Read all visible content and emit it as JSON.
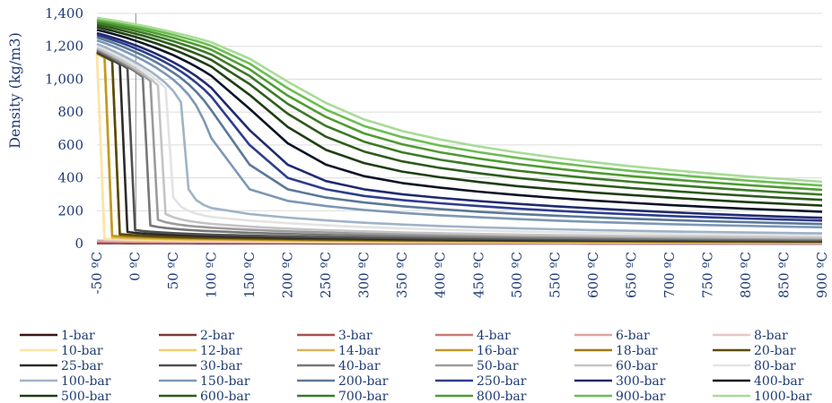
{
  "chart_data": {
    "type": "line",
    "ylabel": "Density (kg/m3)",
    "ylim": [
      0,
      1400
    ],
    "xlim": [
      -50,
      900
    ],
    "y_ticks": [
      "0",
      "200",
      "400",
      "600",
      "800",
      "1,000",
      "1,200",
      "1,400"
    ],
    "x_ticks": [
      "-50 ºC",
      "0 ºC",
      "50 ºC",
      "100 ºC",
      "150 ºC",
      "200 ºC",
      "250 ºC",
      "300 ºC",
      "350 ºC",
      "400 ºC",
      "450 ºC",
      "500 ºC",
      "550 ºC",
      "600 ºC",
      "650 ºC",
      "700 ºC",
      "750 ºC",
      "800 ºC",
      "850 ºC",
      "900 ºC"
    ],
    "grid": true,
    "legend_position": "bottom",
    "x": [
      -50,
      -40,
      -30,
      -20,
      -10,
      0,
      10,
      20,
      30,
      40,
      50,
      60,
      70,
      80,
      90,
      100,
      150,
      200,
      250,
      300,
      350,
      400,
      450,
      500,
      550,
      600,
      650,
      700,
      750,
      800,
      850,
      900
    ],
    "series": [
      {
        "name": "1-bar",
        "color": "#3b1414",
        "values": [
          2.8,
          2.7,
          2.6,
          2.5,
          2.4,
          2.35,
          2.3,
          2.2,
          2.15,
          2.1,
          2.05,
          2.0,
          1.95,
          1.9,
          1.85,
          1.8,
          1.6,
          1.45,
          1.3,
          1.2,
          1.1,
          1.05,
          0.95,
          0.9,
          0.85,
          0.8,
          0.8,
          0.75,
          0.7,
          0.7,
          0.65,
          0.6
        ]
      },
      {
        "name": "2-bar",
        "color": "#7b3a3a",
        "values": [
          5.7,
          5.5,
          5.3,
          5.0,
          4.9,
          4.7,
          4.6,
          4.4,
          4.3,
          4.2,
          4.1,
          4.0,
          3.9,
          3.8,
          3.7,
          3.6,
          3.2,
          2.9,
          2.6,
          2.4,
          2.2,
          2.1,
          1.9,
          1.8,
          1.7,
          1.6,
          1.6,
          1.5,
          1.4,
          1.4,
          1.3,
          1.2
        ]
      },
      {
        "name": "3-bar",
        "color": "#a55050",
        "values": [
          8.7,
          8.3,
          8.0,
          7.6,
          7.4,
          7.1,
          6.9,
          6.6,
          6.4,
          6.3,
          6.1,
          6.0,
          5.8,
          5.7,
          5.5,
          5.4,
          4.8,
          4.3,
          3.9,
          3.6,
          3.3,
          3.1,
          2.9,
          2.7,
          2.6,
          2.4,
          2.3,
          2.2,
          2.1,
          2.0,
          1.9,
          1.8
        ]
      },
      {
        "name": "4-bar",
        "color": "#c87878",
        "values": [
          11.8,
          11.2,
          10.7,
          10.2,
          9.9,
          9.5,
          9.2,
          8.9,
          8.6,
          8.4,
          8.2,
          7.9,
          7.7,
          7.6,
          7.4,
          7.2,
          6.4,
          5.8,
          5.2,
          4.8,
          4.4,
          4.1,
          3.9,
          3.6,
          3.4,
          3.3,
          3.1,
          2.9,
          2.8,
          2.7,
          2.6,
          2.5
        ]
      },
      {
        "name": "6-bar",
        "color": "#dba5a5",
        "values": [
          18.0,
          17.1,
          16.3,
          15.5,
          14.9,
          14.3,
          13.8,
          13.3,
          12.9,
          12.5,
          12.2,
          11.9,
          11.6,
          11.3,
          11.0,
          10.8,
          9.6,
          8.6,
          7.8,
          7.2,
          6.6,
          6.2,
          5.8,
          5.4,
          5.1,
          4.9,
          4.6,
          4.4,
          4.2,
          4.0,
          3.9,
          3.7
        ]
      },
      {
        "name": "8-bar",
        "color": "#e8c4c4",
        "values": [
          1150,
          23.0,
          21.9,
          20.8,
          20.0,
          19.2,
          18.5,
          17.8,
          17.2,
          16.7,
          16.2,
          15.8,
          15.4,
          15.0,
          14.7,
          14.4,
          12.8,
          11.5,
          10.4,
          9.6,
          8.8,
          8.2,
          7.7,
          7.2,
          6.8,
          6.5,
          6.2,
          5.9,
          5.6,
          5.4,
          5.2,
          5.0
        ]
      },
      {
        "name": "10-bar",
        "color": "#fbe6a2",
        "values": [
          1152,
          29.4,
          27.8,
          26.4,
          25.2,
          24.1,
          23.2,
          22.3,
          21.6,
          20.9,
          20.3,
          19.7,
          19.2,
          18.7,
          18.3,
          17.9,
          16.0,
          14.4,
          13.0,
          11.9,
          11.0,
          10.3,
          9.6,
          9.0,
          8.5,
          8.1,
          7.7,
          7.3,
          7.0,
          6.7,
          6.5,
          6.2
        ]
      },
      {
        "name": "12-bar",
        "color": "#f2cf6e",
        "values": [
          1154,
          1130,
          34.0,
          32.0,
          30.5,
          29.1,
          27.9,
          26.8,
          25.9,
          25.1,
          24.3,
          23.6,
          23.0,
          22.4,
          21.9,
          21.4,
          19.2,
          17.3,
          15.6,
          14.3,
          13.2,
          12.3,
          11.5,
          10.8,
          10.2,
          9.7,
          9.2,
          8.8,
          8.4,
          8.1,
          7.7,
          7.4
        ]
      },
      {
        "name": "14-bar",
        "color": "#dbb25a",
        "values": [
          1156,
          1132,
          40.6,
          38.0,
          36.0,
          34.3,
          32.8,
          31.5,
          30.4,
          29.4,
          28.5,
          27.6,
          26.9,
          26.2,
          25.6,
          25.0,
          22.4,
          20.1,
          18.2,
          16.7,
          15.4,
          14.4,
          13.4,
          12.6,
          11.9,
          11.3,
          10.7,
          10.2,
          9.8,
          9.4,
          9.0,
          8.7
        ]
      },
      {
        "name": "16-bar",
        "color": "#c19a25",
        "values": [
          1158,
          1134,
          47.5,
          44.2,
          41.7,
          39.6,
          37.8,
          36.3,
          35.0,
          33.8,
          32.7,
          31.7,
          30.8,
          30.0,
          29.3,
          28.6,
          25.6,
          23.0,
          20.8,
          19.1,
          17.6,
          16.4,
          15.3,
          14.4,
          13.6,
          12.9,
          12.3,
          11.7,
          11.2,
          10.7,
          10.3,
          9.9
        ]
      },
      {
        "name": "18-bar",
        "color": "#9c7a12",
        "values": [
          1160,
          1136,
          1110,
          50.7,
          47.6,
          45.0,
          42.9,
          41.1,
          39.6,
          38.2,
          36.9,
          35.8,
          34.8,
          33.9,
          33.0,
          32.2,
          28.8,
          25.9,
          23.4,
          21.5,
          19.8,
          18.5,
          17.3,
          16.2,
          15.3,
          14.5,
          13.8,
          13.1,
          12.6,
          12.0,
          11.6,
          11.1
        ]
      },
      {
        "name": "20-bar",
        "color": "#5c4a08",
        "values": [
          1162,
          1138,
          1112,
          57.6,
          53.7,
          50.6,
          48.1,
          46.0,
          44.2,
          42.6,
          41.2,
          39.9,
          38.7,
          37.7,
          36.7,
          35.8,
          32.0,
          28.8,
          26.0,
          23.9,
          22.0,
          20.5,
          19.2,
          18.0,
          17.0,
          16.1,
          15.3,
          14.6,
          14.0,
          13.4,
          12.8,
          12.3
        ]
      },
      {
        "name": "25-bar",
        "color": "#2b2b2b",
        "values": [
          1166,
          1142,
          1117,
          1090,
          70.6,
          65.6,
          61.8,
          58.8,
          56.3,
          54.1,
          52.2,
          50.5,
          49.0,
          47.6,
          46.3,
          45.1,
          40.1,
          36.0,
          32.6,
          29.8,
          27.5,
          25.6,
          24.0,
          22.5,
          21.2,
          20.1,
          19.1,
          18.2,
          17.4,
          16.7,
          16.0,
          15.4
        ]
      },
      {
        "name": "30-bar",
        "color": "#505050",
        "values": [
          1170,
          1146,
          1121,
          1095,
          1066,
          82.8,
          77.0,
          72.6,
          69.1,
          66.2,
          63.6,
          61.4,
          59.4,
          57.6,
          56.0,
          54.5,
          48.3,
          43.3,
          39.2,
          35.8,
          33.0,
          30.7,
          28.7,
          27.0,
          25.5,
          24.1,
          22.9,
          21.8,
          20.9,
          20.0,
          19.2,
          18.5
        ]
      },
      {
        "name": "40-bar",
        "color": "#777777",
        "values": [
          1178,
          1154,
          1130,
          1104,
          1076,
          1047,
          1014,
          110,
          101,
          95.0,
          90.2,
          86.2,
          82.8,
          79.9,
          77.3,
          75.0,
          65.8,
          58.8,
          53.1,
          48.4,
          44.5,
          41.3,
          38.6,
          36.2,
          34.1,
          32.3,
          30.7,
          29.2,
          27.9,
          26.8,
          25.7,
          24.7
        ]
      },
      {
        "name": "50-bar",
        "color": "#9b9b9b",
        "values": [
          1185,
          1162,
          1138,
          1113,
          1086,
          1057,
          1026,
          990,
          145,
          130,
          121,
          114,
          108,
          104,
          100,
          96.6,
          84.0,
          74.7,
          67.3,
          61.2,
          56.2,
          52.1,
          48.6,
          45.6,
          42.9,
          40.6,
          38.6,
          36.7,
          35.1,
          33.6,
          32.2,
          31.0
        ]
      },
      {
        "name": "60-bar",
        "color": "#c4c4c4",
        "values": [
          1192,
          1170,
          1146,
          1121,
          1095,
          1067,
          1037,
          1003,
          962,
          180,
          160,
          147,
          138,
          131,
          125,
          120,
          103,
          91.2,
          81.9,
          74.4,
          68.2,
          63.1,
          58.8,
          55.1,
          51.9,
          49.0,
          46.5,
          44.3,
          42.3,
          40.5,
          38.8,
          37.3
        ]
      },
      {
        "name": "80-bar",
        "color": "#e3e3e3",
        "values": [
          1204,
          1184,
          1161,
          1138,
          1113,
          1086,
          1058,
          1026,
          990,
          946,
          280,
          225,
          199,
          183,
          171,
          162,
          140,
          124,
          111,
          100,
          91.8,
          84.8,
          78.9,
          73.9,
          69.5,
          65.6,
          62.2,
          59.2,
          56.5,
          54.0,
          51.8,
          49.7
        ]
      },
      {
        "name": "100-bar",
        "color": "#9fb3c8",
        "values": [
          1214,
          1196,
          1175,
          1153,
          1129,
          1104,
          1077,
          1048,
          1015,
          976,
          928,
          860,
          330,
          265,
          235,
          216,
          180,
          158,
          141,
          127,
          116,
          107,
          99.4,
          93.0,
          87.3,
          82.4,
          78.1,
          74.2,
          70.8,
          67.6,
          64.8,
          62.2
        ]
      },
      {
        "name": "150-bar",
        "color": "#7d97b5",
        "values": [
          1236,
          1220,
          1202,
          1183,
          1162,
          1140,
          1117,
          1091,
          1063,
          1032,
          997,
          955,
          905,
          840,
          750,
          640,
          330,
          260,
          228,
          205,
          187,
          172,
          160,
          149,
          140,
          132,
          125,
          118,
          113,
          108,
          103,
          99
        ]
      },
      {
        "name": "200-bar",
        "color": "#5b7897",
        "values": [
          1254,
          1239,
          1223,
          1205,
          1186,
          1166,
          1145,
          1122,
          1097,
          1070,
          1040,
          1007,
          969,
          924,
          872,
          810,
          480,
          330,
          280,
          250,
          227,
          209,
          194,
          181,
          170,
          160,
          151,
          143,
          136,
          130,
          124,
          119
        ]
      },
      {
        "name": "250-bar",
        "color": "#2e3d8f",
        "values": [
          1268,
          1255,
          1240,
          1224,
          1207,
          1188,
          1169,
          1148,
          1126,
          1102,
          1076,
          1047,
          1015,
          979,
          939,
          893,
          600,
          400,
          330,
          290,
          265,
          245,
          228,
          213,
          200,
          188,
          178,
          168,
          160,
          153,
          146,
          140
        ]
      },
      {
        "name": "300-bar",
        "color": "#1f2a6e",
        "values": [
          1280,
          1268,
          1254,
          1240,
          1224,
          1207,
          1189,
          1170,
          1149,
          1127,
          1103,
          1077,
          1049,
          1018,
          984,
          946,
          690,
          480,
          380,
          330,
          300,
          278,
          259,
          242,
          227,
          214,
          202,
          191,
          181,
          172,
          164,
          157
        ]
      },
      {
        "name": "400-bar",
        "color": "#0b1226",
        "values": [
          1300,
          1289,
          1277,
          1264,
          1250,
          1235,
          1219,
          1202,
          1185,
          1166,
          1146,
          1124,
          1101,
          1076,
          1049,
          1020,
          820,
          610,
          480,
          410,
          368,
          340,
          316,
          296,
          278,
          262,
          248,
          235,
          223,
          212,
          203,
          194
        ]
      },
      {
        "name": "500-bar",
        "color": "#1f3d12",
        "values": [
          1316,
          1306,
          1295,
          1283,
          1271,
          1258,
          1244,
          1229,
          1214,
          1197,
          1180,
          1162,
          1142,
          1121,
          1099,
          1076,
          905,
          710,
          570,
          490,
          438,
          403,
          375,
          350,
          330,
          311,
          295,
          280,
          266,
          253,
          242,
          231
        ]
      },
      {
        "name": "600-bar",
        "color": "#2e5a1c",
        "values": [
          1330,
          1321,
          1311,
          1300,
          1289,
          1277,
          1265,
          1252,
          1238,
          1223,
          1208,
          1191,
          1174,
          1156,
          1137,
          1117,
          970,
          790,
          650,
          560,
          500,
          460,
          428,
          400,
          377,
          356,
          338,
          321,
          305,
          291,
          278,
          266
        ]
      },
      {
        "name": "700-bar",
        "color": "#3c7a26",
        "values": [
          1343,
          1335,
          1325,
          1315,
          1305,
          1294,
          1283,
          1271,
          1258,
          1245,
          1231,
          1216,
          1201,
          1185,
          1168,
          1150,
          1020,
          850,
          715,
          620,
          555,
          510,
          475,
          444,
          419,
          396,
          376,
          358,
          341,
          325,
          311,
          298
        ]
      },
      {
        "name": "800-bar",
        "color": "#4f9b33",
        "values": [
          1354,
          1346,
          1338,
          1329,
          1319,
          1309,
          1299,
          1288,
          1276,
          1264,
          1252,
          1238,
          1224,
          1210,
          1195,
          1179,
          1060,
          900,
          770,
          670,
          604,
          555,
          517,
          485,
          457,
          432,
          410,
          391,
          373,
          356,
          341,
          327
        ]
      },
      {
        "name": "900-bar",
        "color": "#6bbd52",
        "values": [
          1364,
          1357,
          1349,
          1341,
          1332,
          1323,
          1313,
          1303,
          1292,
          1281,
          1270,
          1257,
          1245,
          1232,
          1218,
          1203,
          1095,
          945,
          815,
          715,
          647,
          596,
          556,
          522,
          492,
          466,
          442,
          421,
          402,
          384,
          368,
          353
        ]
      },
      {
        "name": "1000-bar",
        "color": "#a8dc96",
        "values": [
          1373,
          1366,
          1359,
          1351,
          1343,
          1334,
          1326,
          1316,
          1306,
          1296,
          1285,
          1274,
          1262,
          1250,
          1237,
          1224,
          1125,
          985,
          855,
          755,
          685,
          633,
          591,
          555,
          523,
          495,
          470,
          448,
          428,
          409,
          392,
          376
        ]
      }
    ]
  }
}
